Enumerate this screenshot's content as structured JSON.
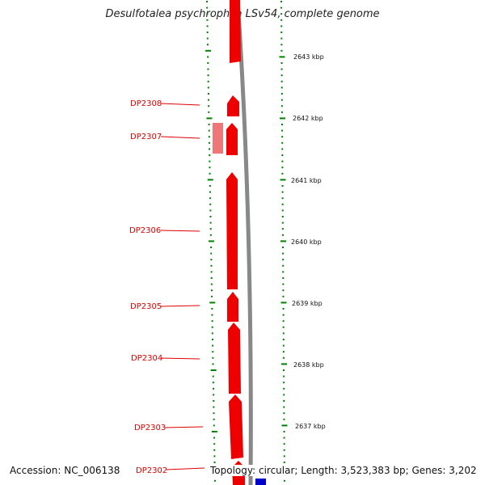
{
  "title": "Desulfotalea psychrophila LSv54, complete genome",
  "footer": {
    "accession": "Accession: NC_006138",
    "topology": "Topology: circular; Length: 3,523,383 bp; Genes: 3,202"
  },
  "colors": {
    "gene_forward": "#ee0000",
    "gene_pale": "#ee7777",
    "backbone": "#888888",
    "tick": "#008000",
    "label": "#dd0000",
    "other_strand": "#0000cc"
  },
  "scale_labels": [
    "2643 kbp",
    "2642 kbp",
    "2641 kbp",
    "2640 kbp",
    "2639 kbp",
    "2638 kbp",
    "2637 kbp"
  ],
  "gene_labels": [
    "DP2308",
    "DP2307",
    "DP2306",
    "DP2305",
    "DP2304",
    "DP2303",
    "DP2302"
  ]
}
